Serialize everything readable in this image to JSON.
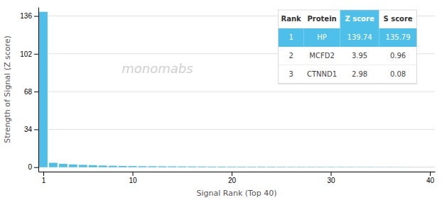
{
  "chart_data": {
    "type": "bar",
    "xlabel": "Signal Rank (Top 40)",
    "ylabel": "Strength of Signal (Z score)",
    "x": [
      1,
      2,
      3,
      4,
      5,
      6,
      7,
      8,
      9,
      10,
      11,
      12,
      13,
      14,
      15,
      16,
      17,
      18,
      19,
      20,
      21,
      22,
      23,
      24,
      25,
      26,
      27,
      28,
      29,
      30,
      31,
      32,
      33,
      34,
      35,
      36,
      37,
      38,
      39,
      40
    ],
    "values": [
      139.74,
      3.95,
      2.98,
      2.5,
      2.1,
      1.8,
      1.5,
      1.3,
      1.1,
      1.0,
      0.9,
      0.85,
      0.8,
      0.75,
      0.7,
      0.65,
      0.6,
      0.55,
      0.5,
      0.48,
      0.45,
      0.42,
      0.4,
      0.38,
      0.35,
      0.33,
      0.31,
      0.29,
      0.27,
      0.25,
      0.23,
      0.21,
      0.19,
      0.18,
      0.16,
      0.15,
      0.13,
      0.12,
      0.1,
      0.09
    ],
    "color": "#4dbfe8",
    "xlim": [
      0.5,
      40.5
    ],
    "ylim": [
      -4,
      144
    ],
    "xticks": [
      1,
      10,
      20,
      30,
      40
    ],
    "yticks": [
      0,
      34,
      68,
      102,
      136
    ],
    "grid": true,
    "annotations": [
      "monomabs"
    ],
    "table_headers": [
      "Rank",
      "Protein",
      "Z score",
      "S score"
    ],
    "table_rows": [
      [
        "1",
        "HP",
        "139.74",
        "135.79"
      ],
      [
        "2",
        "MCFD2",
        "3.95",
        "0.96"
      ],
      [
        "3",
        "CTNND1",
        "2.98",
        "0.08"
      ]
    ]
  }
}
